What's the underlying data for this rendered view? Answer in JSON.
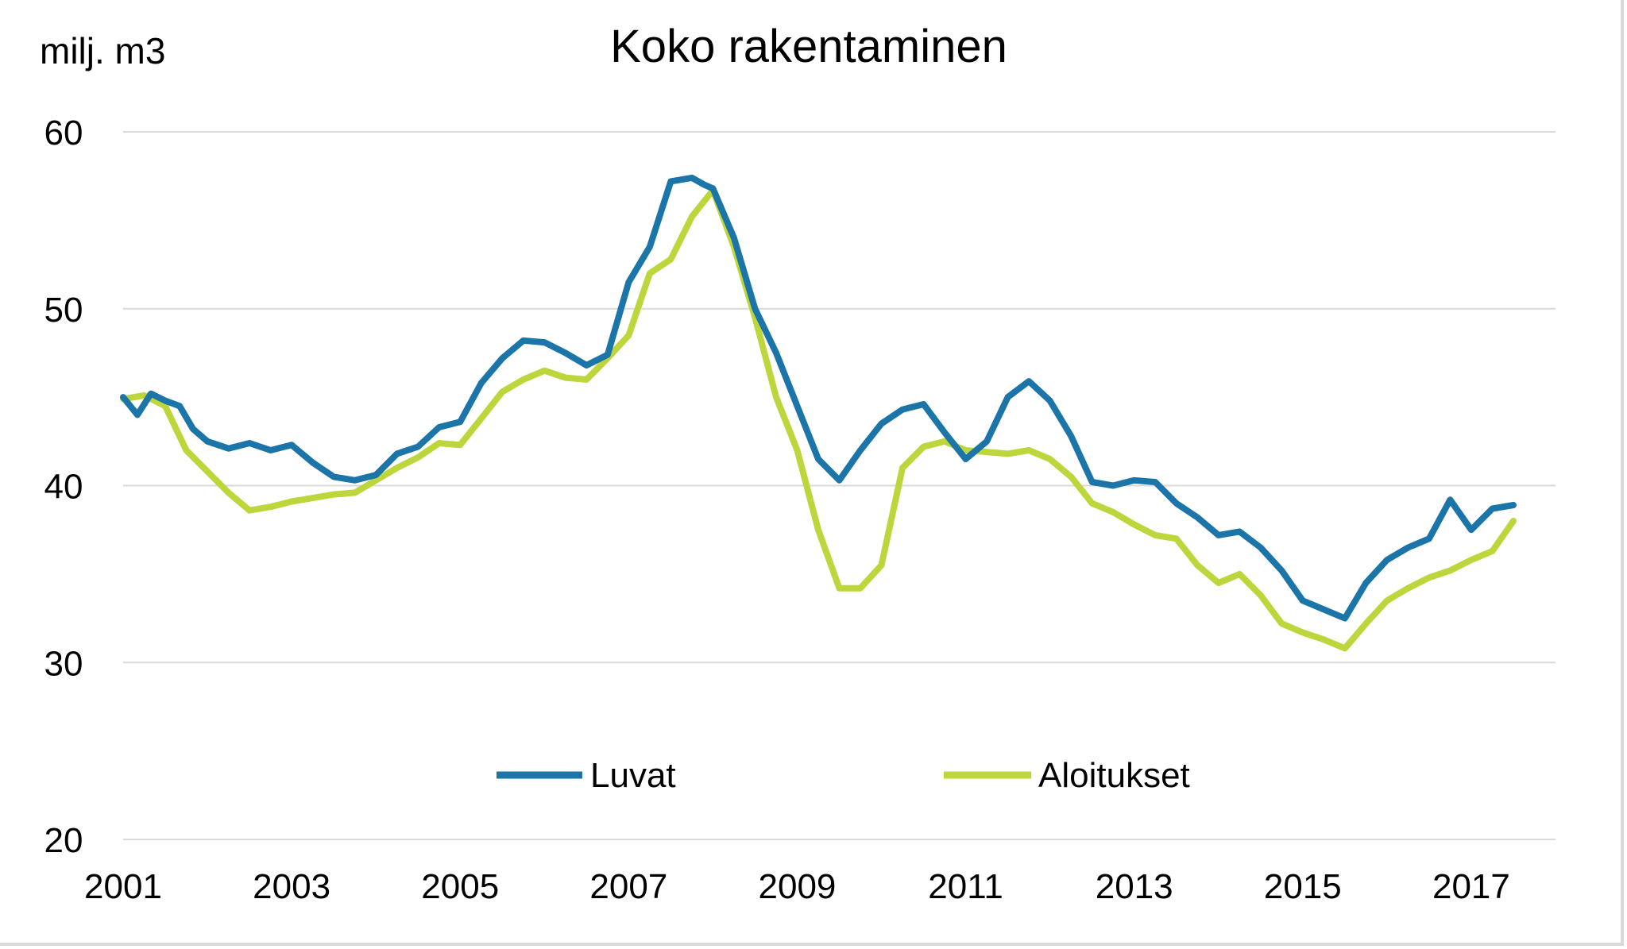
{
  "chart_data": {
    "type": "line",
    "title": "Koko rakentaminen",
    "ylabel": "milj. m3",
    "xlabel": "",
    "ylim": [
      20,
      60
    ],
    "yticks": [
      "60",
      "50",
      "40",
      "30",
      "20"
    ],
    "xticks": [
      "2001",
      "2003",
      "2005",
      "2007",
      "2009",
      "2011",
      "2013",
      "2015",
      "2017"
    ],
    "x_range": [
      2001.0,
      2018.0
    ],
    "grid": "horizontal",
    "legend_position": "bottom",
    "series": [
      {
        "name": "Luvat",
        "color": "#1b75a8",
        "points": [
          [
            2001.0,
            45.0
          ],
          [
            2001.17,
            44.0
          ],
          [
            2001.33,
            45.2
          ],
          [
            2001.5,
            44.8
          ],
          [
            2001.67,
            44.5
          ],
          [
            2001.83,
            43.2
          ],
          [
            2002.0,
            42.5
          ],
          [
            2002.25,
            42.1
          ],
          [
            2002.5,
            42.4
          ],
          [
            2002.75,
            42.0
          ],
          [
            2003.0,
            42.3
          ],
          [
            2003.25,
            41.3
          ],
          [
            2003.5,
            40.5
          ],
          [
            2003.75,
            40.3
          ],
          [
            2004.0,
            40.6
          ],
          [
            2004.25,
            41.8
          ],
          [
            2004.5,
            42.2
          ],
          [
            2004.75,
            43.3
          ],
          [
            2005.0,
            43.6
          ],
          [
            2005.25,
            45.8
          ],
          [
            2005.5,
            47.2
          ],
          [
            2005.75,
            48.2
          ],
          [
            2006.0,
            48.1
          ],
          [
            2006.25,
            47.5
          ],
          [
            2006.5,
            46.8
          ],
          [
            2006.75,
            47.4
          ],
          [
            2007.0,
            51.5
          ],
          [
            2007.25,
            53.5
          ],
          [
            2007.5,
            57.2
          ],
          [
            2007.75,
            57.4
          ],
          [
            2007.9,
            57.0
          ],
          [
            2008.0,
            56.8
          ],
          [
            2008.25,
            54.0
          ],
          [
            2008.5,
            50.0
          ],
          [
            2008.75,
            47.5
          ],
          [
            2009.0,
            44.5
          ],
          [
            2009.25,
            41.5
          ],
          [
            2009.5,
            40.3
          ],
          [
            2009.75,
            42.0
          ],
          [
            2010.0,
            43.5
          ],
          [
            2010.25,
            44.3
          ],
          [
            2010.5,
            44.6
          ],
          [
            2010.75,
            43.0
          ],
          [
            2011.0,
            41.5
          ],
          [
            2011.25,
            42.5
          ],
          [
            2011.5,
            45.0
          ],
          [
            2011.75,
            45.9
          ],
          [
            2012.0,
            44.8
          ],
          [
            2012.25,
            42.8
          ],
          [
            2012.5,
            40.2
          ],
          [
            2012.75,
            40.0
          ],
          [
            2013.0,
            40.3
          ],
          [
            2013.25,
            40.2
          ],
          [
            2013.5,
            39.0
          ],
          [
            2013.75,
            38.2
          ],
          [
            2014.0,
            37.2
          ],
          [
            2014.25,
            37.4
          ],
          [
            2014.5,
            36.5
          ],
          [
            2014.75,
            35.2
          ],
          [
            2015.0,
            33.5
          ],
          [
            2015.25,
            33.0
          ],
          [
            2015.5,
            32.5
          ],
          [
            2015.75,
            34.5
          ],
          [
            2016.0,
            35.8
          ],
          [
            2016.25,
            36.5
          ],
          [
            2016.5,
            37.0
          ],
          [
            2016.75,
            39.2
          ],
          [
            2017.0,
            37.5
          ],
          [
            2017.25,
            38.7
          ],
          [
            2017.5,
            38.9
          ]
        ]
      },
      {
        "name": "Aloitukset",
        "color": "#bcd63b",
        "points": [
          [
            2001.0,
            44.9
          ],
          [
            2001.25,
            45.1
          ],
          [
            2001.5,
            44.5
          ],
          [
            2001.75,
            42.0
          ],
          [
            2002.0,
            40.8
          ],
          [
            2002.25,
            39.6
          ],
          [
            2002.5,
            38.6
          ],
          [
            2002.75,
            38.8
          ],
          [
            2003.0,
            39.1
          ],
          [
            2003.25,
            39.3
          ],
          [
            2003.5,
            39.5
          ],
          [
            2003.75,
            39.6
          ],
          [
            2004.0,
            40.3
          ],
          [
            2004.25,
            41.0
          ],
          [
            2004.5,
            41.6
          ],
          [
            2004.75,
            42.4
          ],
          [
            2005.0,
            42.3
          ],
          [
            2005.25,
            43.8
          ],
          [
            2005.5,
            45.3
          ],
          [
            2005.75,
            46.0
          ],
          [
            2006.0,
            46.5
          ],
          [
            2006.25,
            46.1
          ],
          [
            2006.5,
            46.0
          ],
          [
            2006.75,
            47.2
          ],
          [
            2007.0,
            48.5
          ],
          [
            2007.25,
            52.0
          ],
          [
            2007.5,
            52.8
          ],
          [
            2007.75,
            55.2
          ],
          [
            2008.0,
            56.7
          ],
          [
            2008.25,
            53.5
          ],
          [
            2008.5,
            49.5
          ],
          [
            2008.75,
            45.0
          ],
          [
            2009.0,
            42.0
          ],
          [
            2009.25,
            37.5
          ],
          [
            2009.5,
            34.2
          ],
          [
            2009.75,
            34.2
          ],
          [
            2010.0,
            35.5
          ],
          [
            2010.25,
            41.0
          ],
          [
            2010.5,
            42.2
          ],
          [
            2010.75,
            42.5
          ],
          [
            2011.0,
            42.0
          ],
          [
            2011.25,
            41.9
          ],
          [
            2011.5,
            41.8
          ],
          [
            2011.75,
            42.0
          ],
          [
            2012.0,
            41.5
          ],
          [
            2012.25,
            40.5
          ],
          [
            2012.5,
            39.0
          ],
          [
            2012.75,
            38.5
          ],
          [
            2013.0,
            37.8
          ],
          [
            2013.25,
            37.2
          ],
          [
            2013.5,
            37.0
          ],
          [
            2013.75,
            35.5
          ],
          [
            2014.0,
            34.5
          ],
          [
            2014.25,
            35.0
          ],
          [
            2014.5,
            33.8
          ],
          [
            2014.75,
            32.2
          ],
          [
            2015.0,
            31.7
          ],
          [
            2015.25,
            31.3
          ],
          [
            2015.5,
            30.8
          ],
          [
            2015.75,
            32.2
          ],
          [
            2016.0,
            33.5
          ],
          [
            2016.25,
            34.2
          ],
          [
            2016.5,
            34.8
          ],
          [
            2016.75,
            35.2
          ],
          [
            2017.0,
            35.8
          ],
          [
            2017.25,
            36.3
          ],
          [
            2017.5,
            38.0
          ]
        ]
      }
    ]
  }
}
